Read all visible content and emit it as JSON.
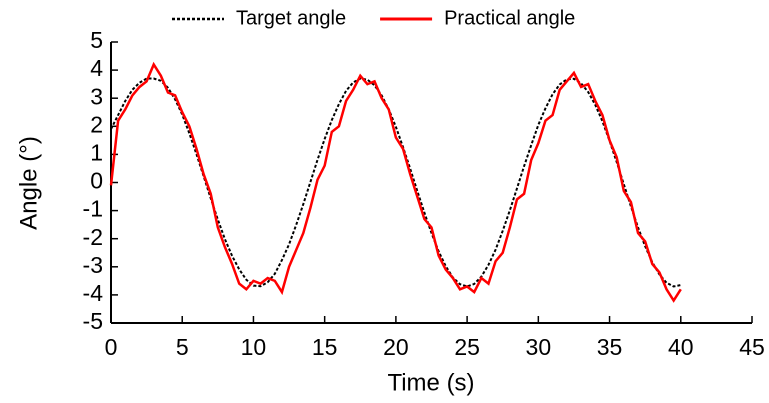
{
  "chart_data": {
    "type": "line",
    "x_label": "Time (s)",
    "y_label": "Angle (°)",
    "legend": "top",
    "xlim": [
      0,
      45
    ],
    "ylim": [
      -5,
      5
    ],
    "xticks": [
      0,
      5,
      10,
      15,
      20,
      25,
      30,
      35,
      40,
      45
    ],
    "yticks": [
      -5,
      -4,
      -3,
      -2,
      -1,
      0,
      1,
      2,
      3,
      4,
      5
    ],
    "x": [
      0,
      0.5,
      1,
      1.5,
      2,
      2.5,
      3,
      3.5,
      4,
      4.5,
      5,
      5.5,
      6,
      6.5,
      7,
      7.5,
      8,
      8.5,
      9,
      9.5,
      10,
      10.5,
      11,
      11.5,
      12,
      12.5,
      13,
      13.5,
      14,
      14.5,
      15,
      15.5,
      16,
      16.5,
      17,
      17.5,
      18,
      18.5,
      19,
      19.5,
      20,
      20.5,
      21,
      21.5,
      22,
      22.5,
      23,
      23.5,
      24,
      24.5,
      25,
      25.5,
      26,
      26.5,
      27,
      27.5,
      28,
      28.5,
      29,
      29.5,
      30,
      30.5,
      31,
      31.5,
      32,
      32.5,
      33,
      33.5,
      34,
      34.5,
      35,
      35.5,
      36,
      36.5,
      37,
      37.5,
      38,
      38.5,
      39,
      39.5,
      40
    ],
    "series": [
      {
        "name": "Target angle",
        "color": "#000000",
        "linestyle": "dotted",
        "values": [
          1.9,
          2.4,
          2.9,
          3.3,
          3.55,
          3.7,
          3.7,
          3.62,
          3.37,
          2.96,
          2.42,
          1.75,
          1.01,
          0.23,
          -0.56,
          -1.32,
          -2.02,
          -2.61,
          -3.09,
          -3.46,
          -3.67,
          -3.69,
          -3.55,
          -3.25,
          -2.76,
          -2.2,
          -1.51,
          -0.77,
          0.02,
          0.81,
          1.55,
          2.22,
          2.79,
          3.26,
          3.56,
          3.7,
          3.66,
          3.46,
          3.1,
          2.6,
          1.98,
          1.26,
          0.5,
          -0.3,
          -1.07,
          -1.8,
          -2.45,
          -2.98,
          -3.38,
          -3.62,
          -3.7,
          -3.61,
          -3.35,
          -2.93,
          -2.39,
          -1.72,
          -0.99,
          -0.21,
          0.58,
          1.33,
          2.05,
          2.64,
          3.14,
          3.49,
          3.67,
          3.69,
          3.53,
          3.22,
          2.76,
          2.18,
          1.48,
          0.73,
          -0.06,
          -0.85,
          -1.6,
          -2.27,
          -2.84,
          -3.27,
          -3.57,
          -3.7,
          -3.65
        ]
      },
      {
        "name": "Practical angle",
        "color": "#ff0000",
        "linestyle": "solid",
        "values": [
          -0.1,
          2.2,
          2.6,
          3.1,
          3.4,
          3.6,
          4.2,
          3.8,
          3.2,
          3.1,
          2.5,
          2.0,
          1.2,
          0.3,
          -0.4,
          -1.6,
          -2.3,
          -2.9,
          -3.6,
          -3.8,
          -3.5,
          -3.6,
          -3.4,
          -3.5,
          -3.9,
          -3.0,
          -2.4,
          -1.8,
          -0.9,
          0.1,
          0.6,
          1.8,
          2.0,
          2.9,
          3.3,
          3.8,
          3.5,
          3.6,
          3.0,
          2.6,
          1.6,
          1.2,
          0.3,
          -0.5,
          -1.3,
          -1.6,
          -2.6,
          -3.1,
          -3.4,
          -3.8,
          -3.7,
          -3.9,
          -3.4,
          -3.6,
          -2.8,
          -2.5,
          -1.6,
          -0.6,
          -0.4,
          0.8,
          1.4,
          2.2,
          2.4,
          3.3,
          3.6,
          3.9,
          3.4,
          3.5,
          2.9,
          2.4,
          1.5,
          0.9,
          -0.3,
          -0.7,
          -1.8,
          -2.1,
          -2.9,
          -3.2,
          -3.8,
          -4.2,
          -3.8
        ]
      }
    ]
  }
}
